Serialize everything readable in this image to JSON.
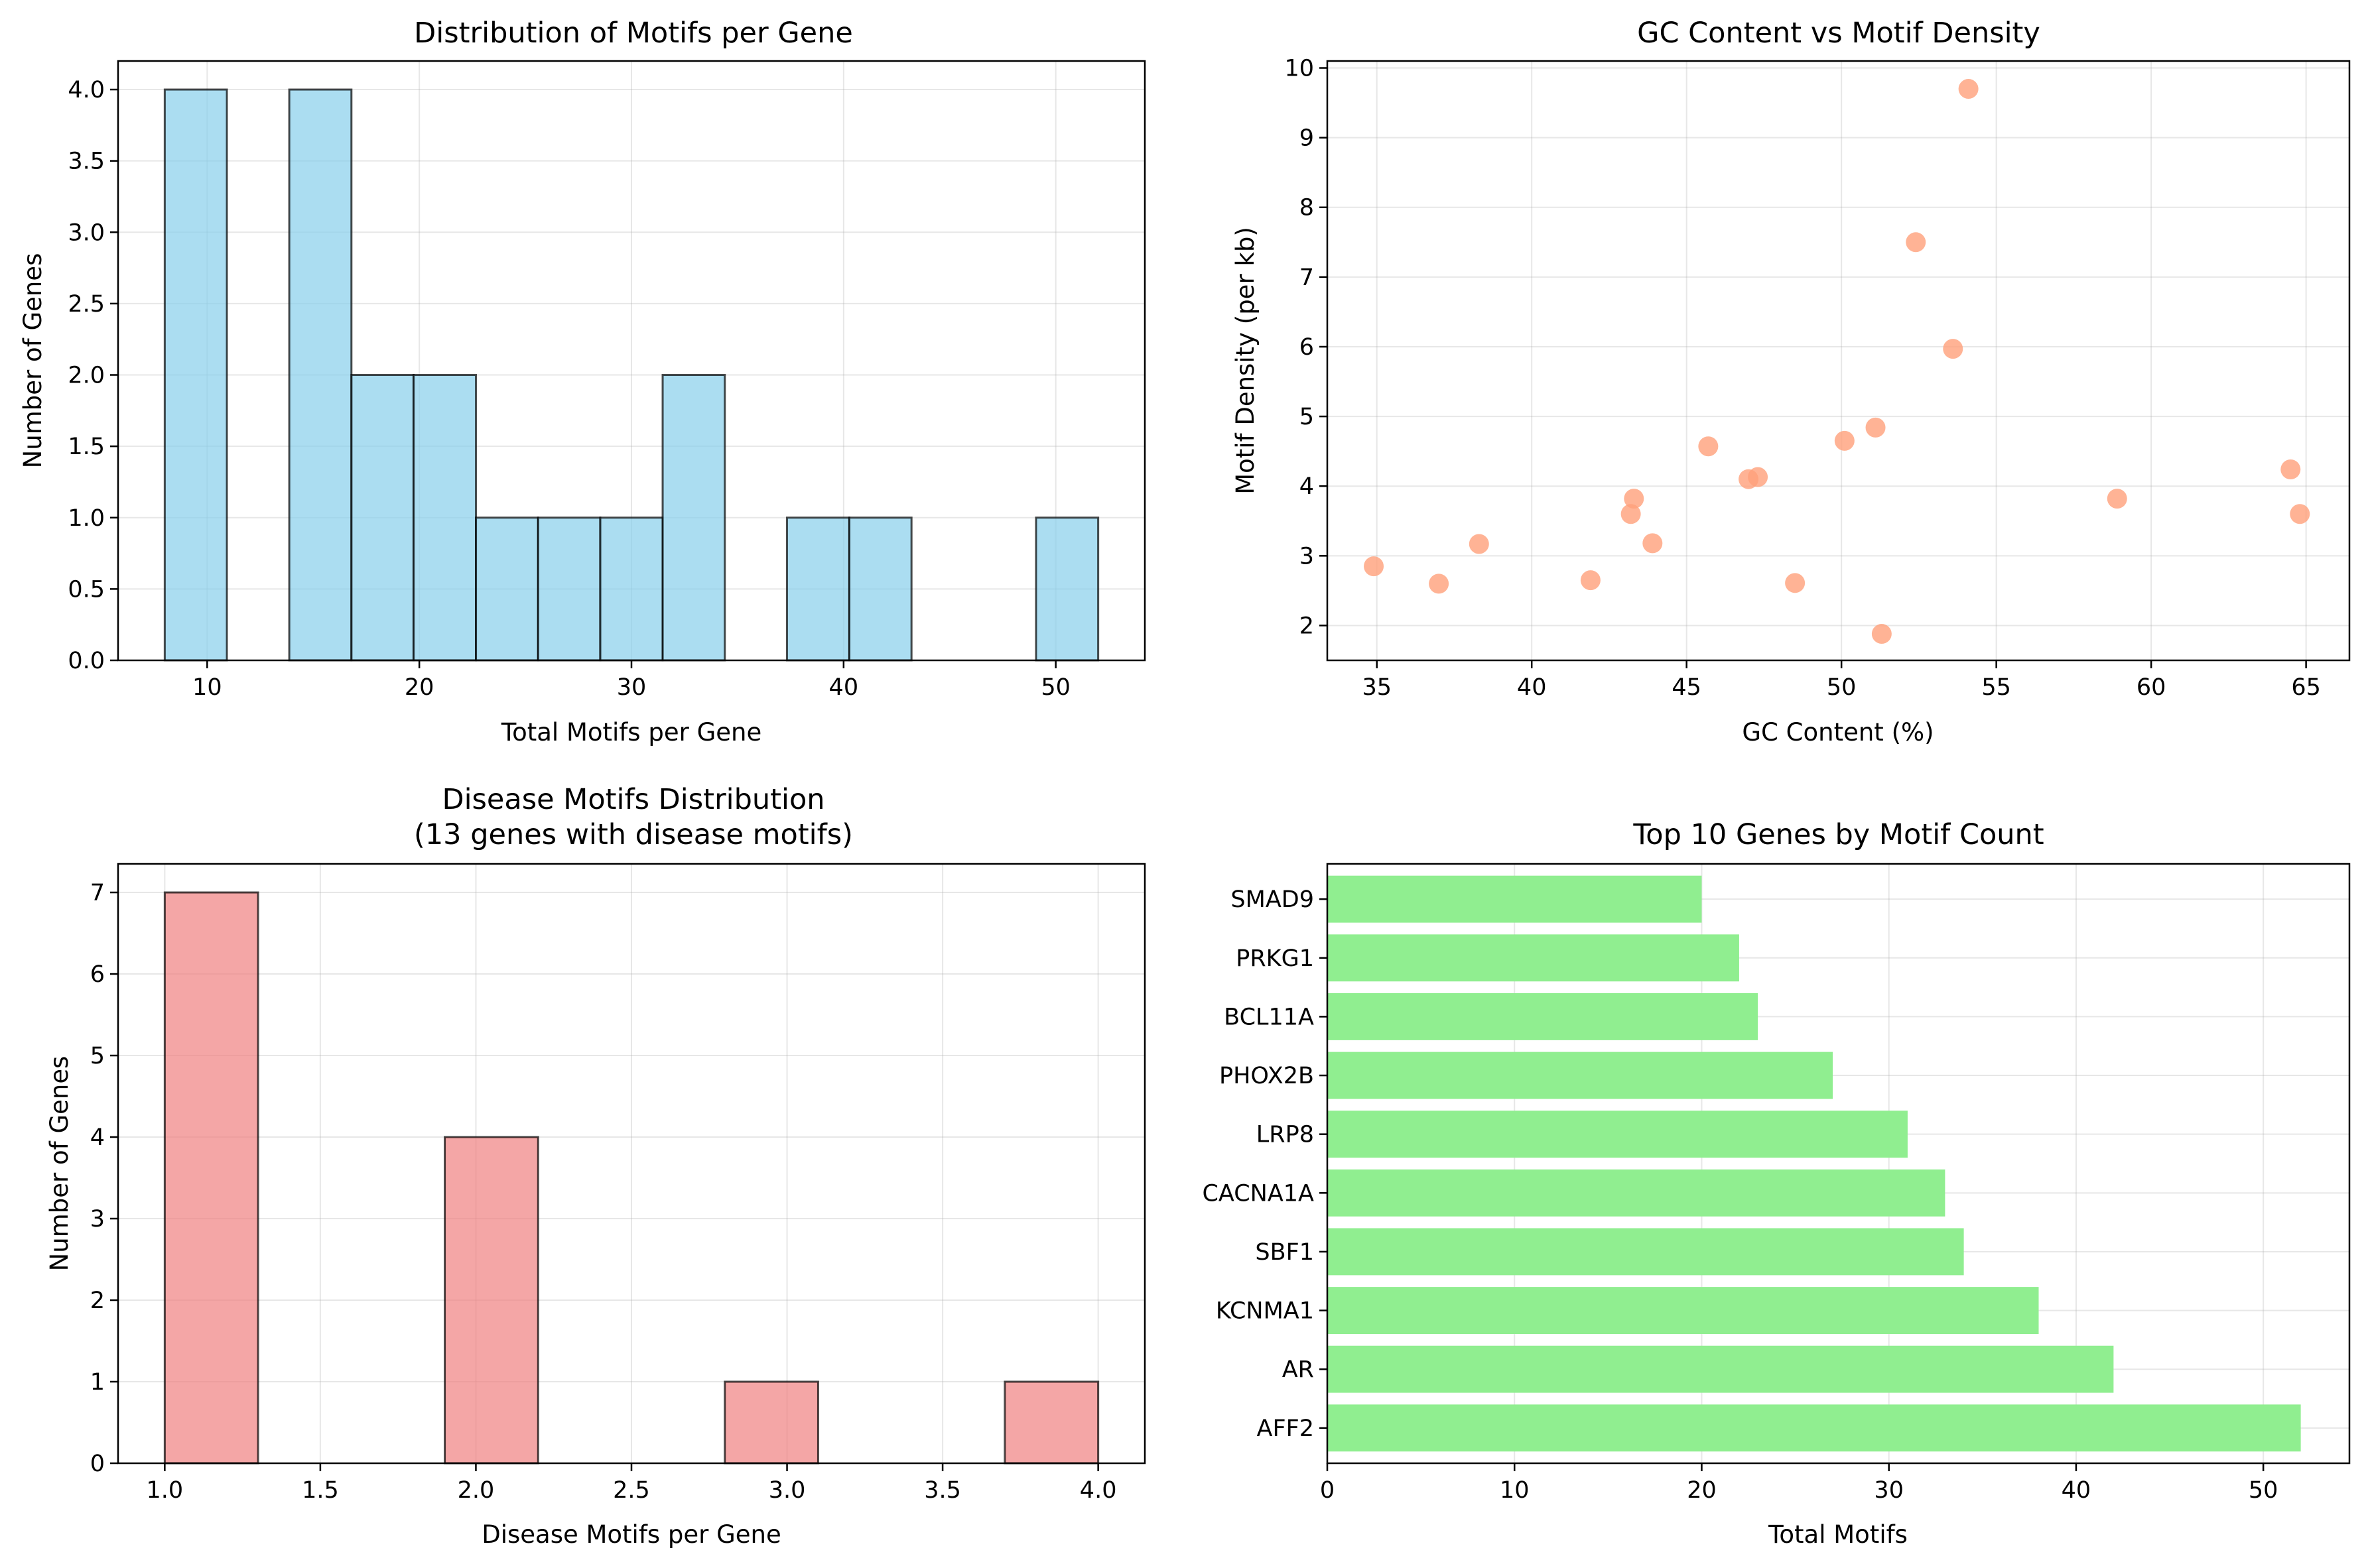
{
  "chart_data": [
    {
      "type": "bar",
      "title": "Distribution of Motifs per Gene",
      "xlabel": "Total Motifs per Gene",
      "ylabel": "Number of Genes",
      "xlim": [
        5.8,
        54.2
      ],
      "ylim": [
        0,
        4.2
      ],
      "xticks": [
        10,
        20,
        30,
        40,
        50
      ],
      "yticks": [
        0.0,
        0.5,
        1.0,
        1.5,
        2.0,
        2.5,
        3.0,
        3.5,
        4.0
      ],
      "bin_edges": [
        8.0,
        10.93,
        13.87,
        16.8,
        19.73,
        22.67,
        25.6,
        28.53,
        31.47,
        34.4,
        37.33,
        40.27,
        43.2,
        46.13,
        49.07,
        52.0
      ],
      "counts": [
        4,
        0,
        4,
        2,
        2,
        1,
        1,
        1,
        2,
        0,
        1,
        1,
        0,
        0,
        1
      ],
      "color": "#87ceeb",
      "grid": true
    },
    {
      "type": "scatter",
      "title": "GC Content vs Motif Density",
      "xlabel": "GC Content (%)",
      "ylabel": "Motif Density (per kb)",
      "xlim": [
        33.4,
        66.4
      ],
      "ylim": [
        1.5,
        10.1
      ],
      "xticks": [
        35,
        40,
        45,
        50,
        55,
        60,
        65
      ],
      "yticks": [
        2,
        3,
        4,
        5,
        6,
        7,
        8,
        9,
        10
      ],
      "points": [
        {
          "x": 34.9,
          "y": 2.85
        },
        {
          "x": 37.0,
          "y": 2.6
        },
        {
          "x": 38.3,
          "y": 3.17
        },
        {
          "x": 41.9,
          "y": 2.65
        },
        {
          "x": 43.2,
          "y": 3.6
        },
        {
          "x": 43.3,
          "y": 3.82
        },
        {
          "x": 43.9,
          "y": 3.18
        },
        {
          "x": 45.7,
          "y": 4.57
        },
        {
          "x": 47.0,
          "y": 4.1
        },
        {
          "x": 47.3,
          "y": 4.13
        },
        {
          "x": 48.5,
          "y": 2.61
        },
        {
          "x": 50.1,
          "y": 4.65
        },
        {
          "x": 51.1,
          "y": 4.84
        },
        {
          "x": 51.3,
          "y": 1.88
        },
        {
          "x": 52.4,
          "y": 7.5
        },
        {
          "x": 53.6,
          "y": 5.97
        },
        {
          "x": 54.1,
          "y": 9.7
        },
        {
          "x": 58.9,
          "y": 3.82
        },
        {
          "x": 64.5,
          "y": 4.24
        },
        {
          "x": 64.8,
          "y": 3.6
        }
      ],
      "color": "#ffa07a",
      "grid": true
    },
    {
      "type": "bar",
      "title": "Disease Motifs Distribution",
      "subtitle": "(13 genes with disease motifs)",
      "xlabel": "Disease Motifs per Gene",
      "ylabel": "Number of Genes",
      "xlim": [
        0.85,
        4.15
      ],
      "ylim": [
        0,
        7.35
      ],
      "xticks": [
        1.0,
        1.5,
        2.0,
        2.5,
        3.0,
        3.5,
        4.0
      ],
      "yticks": [
        0,
        1,
        2,
        3,
        4,
        5,
        6,
        7
      ],
      "bin_edges": [
        1.0,
        1.3,
        1.6,
        1.9,
        2.2,
        2.5,
        2.8,
        3.1,
        3.4,
        3.7,
        4.0
      ],
      "counts": [
        7,
        0,
        0,
        4,
        0,
        0,
        1,
        0,
        0,
        1
      ],
      "color": "#f08080",
      "grid": true
    },
    {
      "type": "bar",
      "orientation": "horizontal",
      "title": "Top 10 Genes by Motif Count",
      "xlabel": "Total Motifs",
      "xlim": [
        0,
        54.6
      ],
      "xticks": [
        0,
        10,
        20,
        30,
        40,
        50
      ],
      "categories": [
        "AFF2",
        "AR",
        "KCNMA1",
        "SBF1",
        "CACNA1A",
        "LRP8",
        "PHOX2B",
        "BCL11A",
        "PRKG1",
        "SMAD9"
      ],
      "values": [
        52,
        42,
        38,
        34,
        33,
        31,
        27,
        23,
        22,
        20
      ],
      "color": "#90ee90",
      "grid": true
    }
  ]
}
